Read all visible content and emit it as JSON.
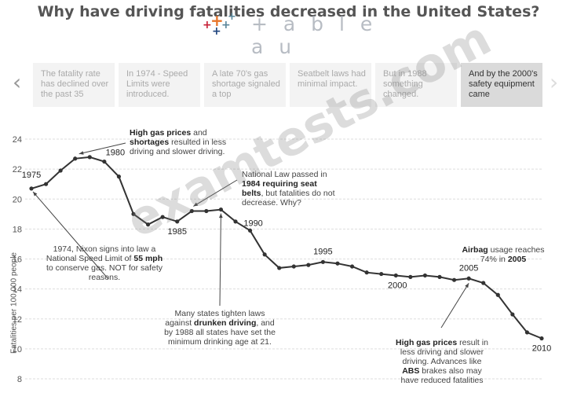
{
  "title": "Why have driving fatalities decreased in the United States?",
  "logo": {
    "text": "+ a b l e a u"
  },
  "watermark": "examtests.com",
  "nav": {
    "cards": [
      "The fatality rate has declined over the past 35",
      "In 1974 - Speed Limits were introduced.",
      "A late 70's gas shortage signaled a top",
      "Seatbelt laws had minimal impact.",
      "But in 1988 something changed.",
      "And by the 2000's safety equipment came"
    ],
    "active_index": 5
  },
  "annotations": {
    "a1_pre": "",
    "a1_bold": "High gas prices",
    "a1_mid": " and",
    "a1_bold2": "shortages",
    "a1_post": " resulted in less driving and slower driving.",
    "a2_pre": "National Law passed in",
    "a2_bold": "1984 requiring seat belts",
    "a2_post": ", but fatalities do not decrease.  Why?",
    "a3_pre": "1974, Nixon signs into law a National Speed Limit of",
    "a3_bold": "55 mph",
    "a3_post": " to conserve gas.  NOT for safety reasons.",
    "a4_pre": "Many states tighten laws against",
    "a4_bold": "drunken driving",
    "a4_post": ", and by 1988 all states have set the minimum drinking age at 21.",
    "a5_bold": "Airbag",
    "a5_mid": " usage reaches 74% in",
    "a5_bold2": "2005",
    "a6_bold": "High gas prices",
    "a6_mid": " result in less driving and slower driving. Advances like",
    "a6_bold2": "ABS",
    "a6_post": " brakes also may have reduced fatalities"
  },
  "chart_data": {
    "type": "line",
    "xlabel": "",
    "ylabel": "Fatalities per 100,000 people",
    "ylim": [
      8,
      24
    ],
    "yticks": [
      8,
      10,
      12,
      14,
      16,
      18,
      20,
      22,
      24
    ],
    "grid": true,
    "series": [
      {
        "x": [
          1975,
          1976,
          1977,
          1978,
          1979,
          1980,
          1981,
          1982,
          1983,
          1984,
          1985,
          1986,
          1987,
          1988,
          1989,
          1990,
          1991,
          1992,
          1993,
          1994,
          1995,
          1996,
          1997,
          1998,
          1999,
          2000,
          2001,
          2002,
          2003,
          2004,
          2005,
          2006,
          2007,
          2008,
          2009,
          2010
        ],
        "values": [
          20.7,
          21.0,
          21.9,
          22.7,
          22.8,
          22.5,
          21.5,
          19.0,
          18.3,
          18.8,
          18.5,
          19.2,
          19.2,
          19.3,
          18.5,
          17.9,
          16.3,
          15.4,
          15.5,
          15.6,
          15.8,
          15.7,
          15.5,
          15.1,
          15.0,
          14.9,
          14.8,
          14.9,
          14.8,
          14.6,
          14.7,
          14.4,
          13.6,
          12.3,
          11.1,
          10.7
        ]
      }
    ],
    "point_labels": [
      "1975",
      "1980",
      "1985",
      "1990",
      "1995",
      "2000",
      "2005",
      "2010"
    ],
    "colors": {
      "line": "#333333",
      "grid": "#dddddd",
      "tick": "#555555"
    }
  }
}
